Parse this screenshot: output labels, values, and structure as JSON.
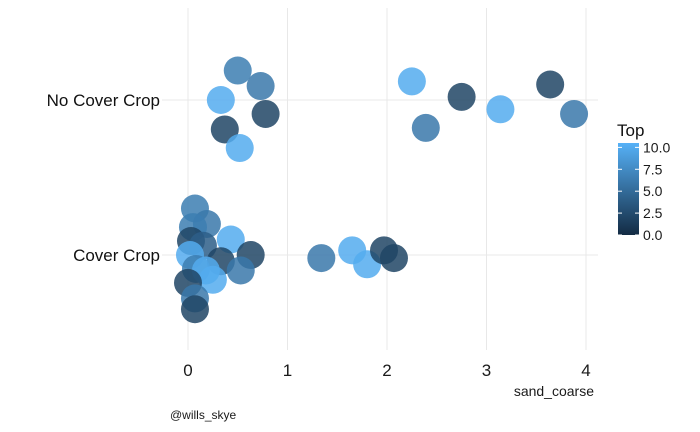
{
  "chart_data": {
    "type": "scatter",
    "title": "",
    "xlabel": "sand_coarse",
    "ylabel": "",
    "xlim": [
      -0.25,
      4.1
    ],
    "x_ticks": [
      "0",
      "1",
      "2",
      "3",
      "4"
    ],
    "categories": [
      "Cover Crop",
      "No Cover Crop"
    ],
    "grid": true,
    "legend": {
      "title": "Top",
      "placement": "right",
      "ticks": [
        "0.0",
        "2.5",
        "5.0",
        "7.5",
        "10.0"
      ],
      "range": [
        0,
        10.5
      ],
      "color_low": "#132B43",
      "color_high": "#56B1F7"
    },
    "caption": "@wills_skye",
    "series": [
      {
        "category": "No Cover Crop",
        "points": [
          {
            "x": 0.5,
            "jitter": 0.19,
            "top": 6.5
          },
          {
            "x": 0.73,
            "jitter": 0.09,
            "top": 6.0
          },
          {
            "x": 0.33,
            "jitter": 0.0,
            "top": 10.0
          },
          {
            "x": 0.78,
            "jitter": -0.09,
            "top": 2.0
          },
          {
            "x": 0.37,
            "jitter": -0.19,
            "top": 2.0
          },
          {
            "x": 0.52,
            "jitter": -0.31,
            "top": 10.0
          },
          {
            "x": 2.25,
            "jitter": 0.12,
            "top": 10.0
          },
          {
            "x": 2.75,
            "jitter": 0.02,
            "top": 2.0
          },
          {
            "x": 3.14,
            "jitter": -0.06,
            "top": 10.0
          },
          {
            "x": 3.64,
            "jitter": 0.1,
            "top": 2.0
          },
          {
            "x": 3.88,
            "jitter": -0.09,
            "top": 6.0
          },
          {
            "x": 2.39,
            "jitter": -0.18,
            "top": 6.0
          }
        ]
      },
      {
        "category": "Cover Crop",
        "points": [
          {
            "x": 0.07,
            "jitter": 0.3,
            "top": 6.5
          },
          {
            "x": 0.19,
            "jitter": 0.2,
            "top": 6.0
          },
          {
            "x": 0.05,
            "jitter": 0.18,
            "top": 6.5
          },
          {
            "x": 0.43,
            "jitter": 0.1,
            "top": 10.0
          },
          {
            "x": 0.03,
            "jitter": 0.09,
            "top": 2.0
          },
          {
            "x": 0.15,
            "jitter": 0.06,
            "top": 4.0
          },
          {
            "x": 0.02,
            "jitter": 0.0,
            "top": 10.0
          },
          {
            "x": 0.63,
            "jitter": 0.0,
            "top": 2.0
          },
          {
            "x": 0.33,
            "jitter": -0.04,
            "top": 2.0
          },
          {
            "x": 0.08,
            "jitter": -0.09,
            "top": 6.5
          },
          {
            "x": 0.18,
            "jitter": -0.1,
            "top": 10.0
          },
          {
            "x": 0.25,
            "jitter": -0.16,
            "top": 10.0
          },
          {
            "x": 0.53,
            "jitter": -0.1,
            "top": 6.0
          },
          {
            "x": 0.0,
            "jitter": -0.18,
            "top": 2.0
          },
          {
            "x": 0.07,
            "jitter": -0.28,
            "top": 6.0
          },
          {
            "x": 0.07,
            "jitter": -0.35,
            "top": 2.0
          },
          {
            "x": 1.34,
            "jitter": -0.02,
            "top": 6.0
          },
          {
            "x": 1.65,
            "jitter": 0.03,
            "top": 10.0
          },
          {
            "x": 1.8,
            "jitter": -0.06,
            "top": 10.0
          },
          {
            "x": 1.97,
            "jitter": 0.03,
            "top": 2.0
          },
          {
            "x": 2.07,
            "jitter": -0.02,
            "top": 2.0
          }
        ]
      }
    ]
  }
}
